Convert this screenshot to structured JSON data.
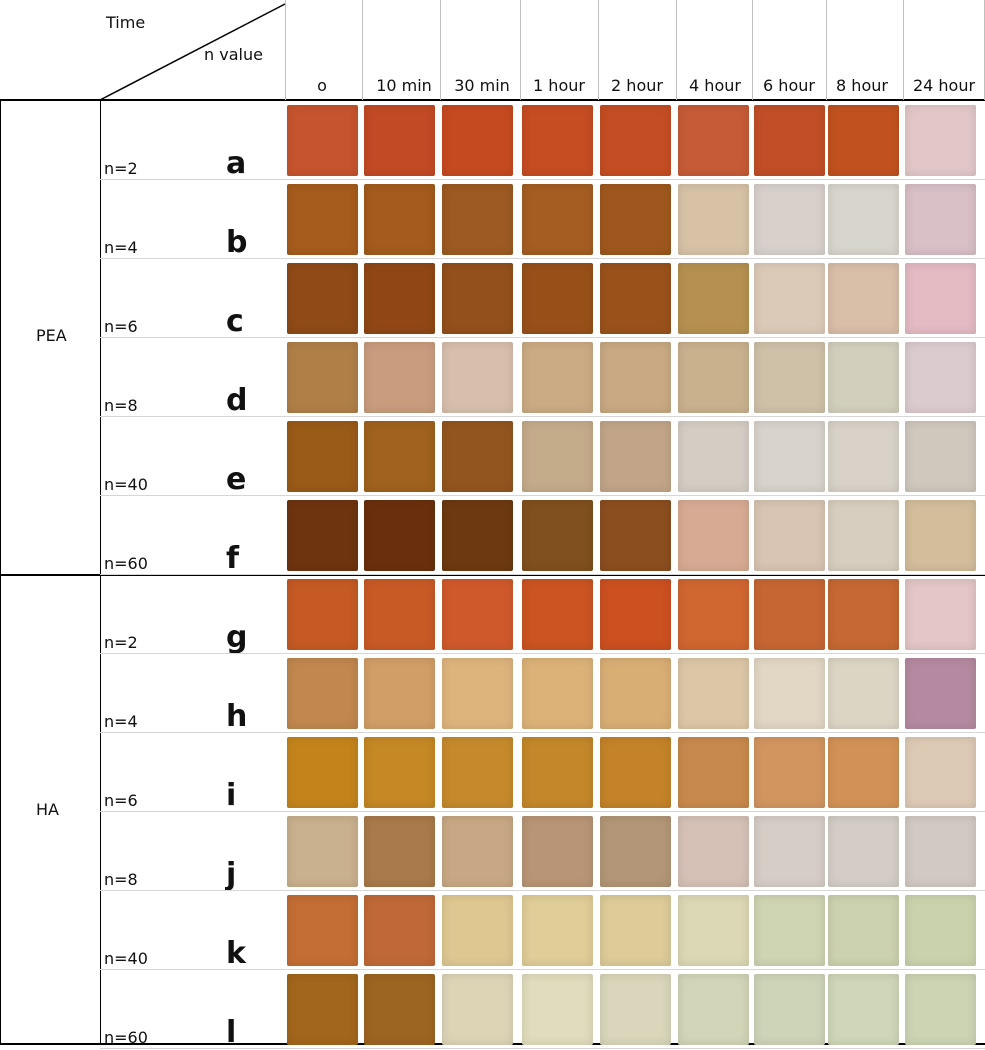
{
  "header": {
    "time_label": "Time",
    "n_value_label": "n value",
    "columns": [
      "o",
      "10 min",
      "30 min",
      "1 hour",
      "2 hour",
      "4 hour",
      "6 hour",
      "8 hour",
      "24 hour"
    ]
  },
  "groups": [
    {
      "name": "PEA",
      "rows": [
        {
          "n": "n=2",
          "letter": "a",
          "colors": [
            "#c6542e",
            "#c24a24",
            "#c64a20",
            "#c64c22",
            "#c54d23",
            "#c65b37",
            "#c14e27",
            "#c1521f",
            "#e2c7c8"
          ]
        },
        {
          "n": "n=4",
          "letter": "b",
          "colors": [
            "#a65c1c",
            "#a45b1d",
            "#9d5a22",
            "#a55d22",
            "#9e581d",
            "#d7c2a6",
            "#d8d0cb",
            "#d8d5cd",
            "#d9bfc6"
          ]
        },
        {
          "n": "n=6",
          "letter": "c",
          "colors": [
            "#8f4a17",
            "#904715",
            "#93501c",
            "#985019",
            "#9a521b",
            "#b59050",
            "#dccab8",
            "#d9bea8",
            "#e4bac3"
          ]
        },
        {
          "n": "n=8",
          "letter": "d",
          "colors": [
            "#b07f48",
            "#c99c7e",
            "#d8bfad",
            "#cbab84",
            "#c8a983",
            "#c9b18e",
            "#cfc1a8",
            "#d2cfbd",
            "#dccbce"
          ]
        },
        {
          "n": "n=40",
          "letter": "e",
          "colors": [
            "#9a5a18",
            "#a0621e",
            "#93551f",
            "#c4ab8a",
            "#c2a588",
            "#d4cdc4",
            "#d8d3cb",
            "#d8d2c8",
            "#d0c8bd"
          ]
        },
        {
          "n": "n=60",
          "letter": "f",
          "colors": [
            "#6e3410",
            "#6a300d",
            "#6d3910",
            "#80501e",
            "#8b4e1f",
            "#d7ab93",
            "#d8c5b3",
            "#d8cebf",
            "#d3bd9b"
          ]
        }
      ]
    },
    {
      "name": "HA",
      "rows": [
        {
          "n": "n=2",
          "letter": "g",
          "colors": [
            "#c55a24",
            "#c85a26",
            "#d0592c",
            "#cb5422",
            "#cc5020",
            "#d06630",
            "#c66633",
            "#c56833",
            "#e3c6c5"
          ]
        },
        {
          "n": "n=4",
          "letter": "h",
          "colors": [
            "#c1874f",
            "#d29e68",
            "#deb47d",
            "#dcb279",
            "#d9ae75",
            "#dcc6a6",
            "#e2d6c4",
            "#dcd5c4",
            "#b58aa0"
          ]
        },
        {
          "n": "n=6",
          "letter": "i",
          "colors": [
            "#c4841c",
            "#c58825",
            "#c68a2c",
            "#c4872a",
            "#c48328",
            "#c8894c",
            "#d29560",
            "#d29256",
            "#ddcab5"
          ]
        },
        {
          "n": "n=8",
          "letter": "j",
          "colors": [
            "#c9b08e",
            "#a97a4a",
            "#c8a884",
            "#b89576",
            "#b39677",
            "#d5c1b6",
            "#d6cdc6",
            "#d4cdc6",
            "#d2c9c2"
          ]
        },
        {
          "n": "n=40",
          "letter": "k",
          "colors": [
            "#c46d35",
            "#c06837",
            "#dfc792",
            "#e0cd98",
            "#ddcb98",
            "#dcd8b5",
            "#cfd4b2",
            "#ccd1af",
            "#cad2ad"
          ]
        },
        {
          "n": "n=60",
          "letter": "l",
          "colors": [
            "#a2661c",
            "#9d6522",
            "#ddd4b6",
            "#e1dcbd",
            "#dad6bb",
            "#d3d5b9",
            "#ced4b8",
            "#cfd6b9",
            "#ccd4b4"
          ]
        }
      ]
    }
  ]
}
